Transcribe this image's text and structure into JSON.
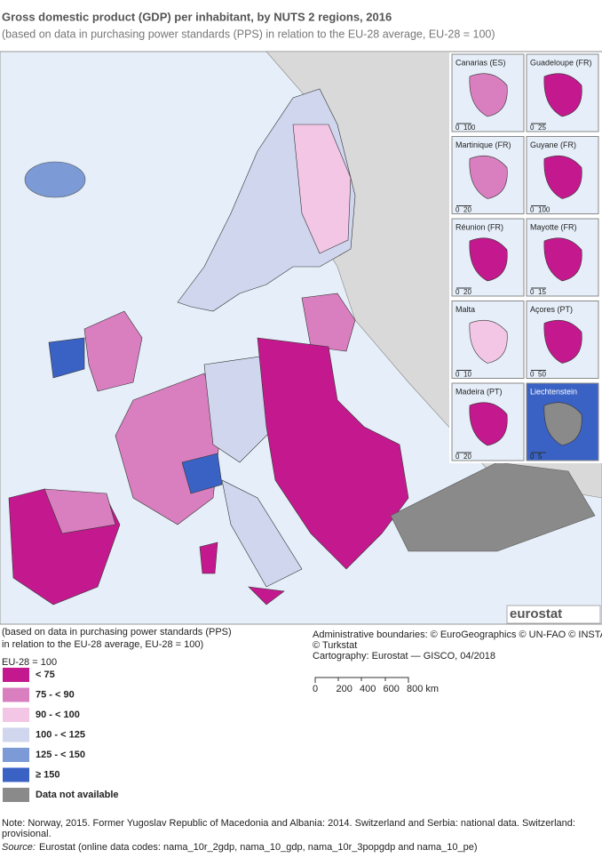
{
  "header": {
    "title": "Gross domestic product (GDP) per inhabitant, by NUTS 2 regions, 2016",
    "subtitle": "(based on data in purchasing power standards (PPS) in relation to the EU-28 average, EU-28 = 100)"
  },
  "insets": [
    {
      "label": "Canarias (ES)",
      "scale": [
        "0",
        "100"
      ],
      "color": "#d97fbf"
    },
    {
      "label": "Guadeloupe (FR)",
      "scale": [
        "0",
        "25"
      ],
      "color": "#c4198e"
    },
    {
      "label": "Martinique (FR)",
      "scale": [
        "0",
        "20"
      ],
      "color": "#d97fbf"
    },
    {
      "label": "Guyane (FR)",
      "scale": [
        "0",
        "100"
      ],
      "color": "#c4198e"
    },
    {
      "label": "Réunion (FR)",
      "scale": [
        "0",
        "20"
      ],
      "color": "#c4198e"
    },
    {
      "label": "Mayotte (FR)",
      "scale": [
        "0",
        "15"
      ],
      "color": "#c4198e"
    },
    {
      "label": "Malta",
      "scale": [
        "0",
        "10"
      ],
      "color": "#f2c6e4"
    },
    {
      "label": "Açores (PT)",
      "scale": [
        "0",
        "50"
      ],
      "color": "#c4198e"
    },
    {
      "label": "Madeira (PT)",
      "scale": [
        "0",
        "20"
      ],
      "color": "#c4198e"
    },
    {
      "label": "Liechtenstein",
      "scale": [
        "0",
        "5"
      ],
      "color": "#8a8a8a"
    }
  ],
  "logo": "eurostat",
  "legend": {
    "heading": [
      "(based on data in purchasing power standards (PPS)",
      "in relation to the EU-28 average, EU-28 = 100)"
    ],
    "subheading": "EU-28 = 100",
    "items": [
      {
        "label": "< 75",
        "color": "#c4198e"
      },
      {
        "label": "75 - < 90",
        "color": "#d97fbf"
      },
      {
        "label": "90 - < 100",
        "color": "#f2c6e4"
      },
      {
        "label": "100 - < 125",
        "color": "#cfd6ee"
      },
      {
        "label": "125 - < 150",
        "color": "#7b9ad6"
      },
      {
        "label": "≥ 150",
        "color": "#3a62c4"
      },
      {
        "label": "Data not available",
        "color": "#8a8a8a"
      }
    ]
  },
  "credits": [
    "Administrative boundaries: © EuroGeographics © UN-FAO © INSTAT",
    "© Turkstat",
    "Cartography: Eurostat — GISCO, 04/2018"
  ],
  "scale_bar": [
    "0",
    "200",
    "400",
    "600",
    "800 km"
  ],
  "note": [
    "Note: Norway, 2015. Former Yugoslav Republic of Macedonia and Albania: 2014. Switzerland and Serbia: national data. Switzerland:",
    "provisional."
  ],
  "source": {
    "label": "Source:",
    "text": "Eurostat (online data codes: nama_10r_2gdp, nama_10_gdp, nama_10r_3popgdp and nama_10_pe)"
  }
}
